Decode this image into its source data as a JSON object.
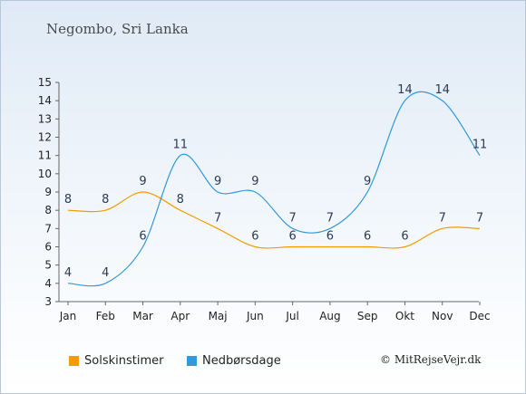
{
  "chart_data": {
    "type": "line",
    "title": "Negombo, Sri Lanka",
    "categories": [
      "Jan",
      "Feb",
      "Mar",
      "Apr",
      "Maj",
      "Jun",
      "Jul",
      "Aug",
      "Sep",
      "Okt",
      "Nov",
      "Dec"
    ],
    "series": [
      {
        "name": "Solskinstimer",
        "color": "#f59b00",
        "values": [
          8,
          8,
          9,
          8,
          7,
          6,
          6,
          6,
          6,
          6,
          7,
          7
        ]
      },
      {
        "name": "Nedbørsdage",
        "color": "#3399dd",
        "values": [
          4,
          4,
          6,
          11,
          9,
          9,
          7,
          7,
          9,
          14,
          14,
          11
        ]
      }
    ],
    "yticks": [
      3,
      4,
      5,
      6,
      7,
      8,
      9,
      10,
      11,
      12,
      13,
      14,
      15
    ],
    "ylim": [
      3,
      15
    ],
    "xlabel": "",
    "ylabel": "",
    "grid": false,
    "legend_position": "bottom"
  },
  "copyright": "© MitRejseVejr.dk"
}
